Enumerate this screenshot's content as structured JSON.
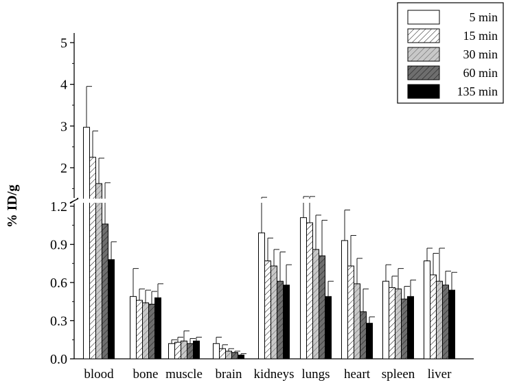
{
  "chart_data": {
    "type": "bar",
    "title": "",
    "xlabel": "",
    "ylabel": "% ID/g",
    "categories": [
      "blood",
      "bone",
      "muscle",
      "brain",
      "kidneys",
      "lungs",
      "heart",
      "spleen",
      "liver"
    ],
    "series": [
      {
        "name": "5 min",
        "fill": "#ffffff",
        "pattern": "none",
        "values": [
          2.97,
          0.49,
          0.12,
          0.12,
          0.99,
          1.11,
          0.93,
          0.61,
          0.77
        ],
        "errors": [
          0.98,
          0.22,
          0.03,
          0.05,
          0.3,
          0.2,
          0.24,
          0.13,
          0.1
        ]
      },
      {
        "name": "15 min",
        "fill": "#ffffff",
        "pattern": "hatch-light",
        "values": [
          2.25,
          0.46,
          0.13,
          0.08,
          0.77,
          1.07,
          0.73,
          0.56,
          0.66
        ],
        "errors": [
          0.63,
          0.09,
          0.04,
          0.03,
          0.18,
          0.24,
          0.24,
          0.09,
          0.17
        ]
      },
      {
        "name": "30 min",
        "fill": "#c8c8c8",
        "pattern": "hatch-gray",
        "values": [
          1.62,
          0.44,
          0.14,
          0.06,
          0.73,
          0.86,
          0.59,
          0.55,
          0.61
        ],
        "errors": [
          0.61,
          0.1,
          0.08,
          0.02,
          0.13,
          0.27,
          0.2,
          0.16,
          0.26
        ]
      },
      {
        "name": "60 min",
        "fill": "#6e6e6e",
        "pattern": "hatch-dark",
        "values": [
          1.06,
          0.43,
          0.12,
          0.05,
          0.61,
          0.81,
          0.37,
          0.47,
          0.58
        ],
        "errors": [
          0.58,
          0.1,
          0.04,
          0.01,
          0.23,
          0.28,
          0.18,
          0.1,
          0.11
        ]
      },
      {
        "name": "135 min",
        "fill": "#000000",
        "pattern": "none",
        "values": [
          0.78,
          0.48,
          0.14,
          0.03,
          0.58,
          0.49,
          0.28,
          0.49,
          0.54
        ],
        "errors": [
          0.14,
          0.11,
          0.03,
          0.01,
          0.16,
          0.12,
          0.05,
          0.13,
          0.14
        ]
      }
    ],
    "y_axis": {
      "broken": true,
      "lower_segment": {
        "range": [
          0.0,
          1.2
        ],
        "ticks": [
          "0.0",
          "0.3",
          "0.6",
          "0.9",
          "1.2"
        ]
      },
      "upper_segment": {
        "range": [
          1.2,
          5.0
        ],
        "ticks": [
          "2",
          "3",
          "4",
          "5"
        ]
      }
    },
    "legend_position": "top-right",
    "grid": false
  }
}
